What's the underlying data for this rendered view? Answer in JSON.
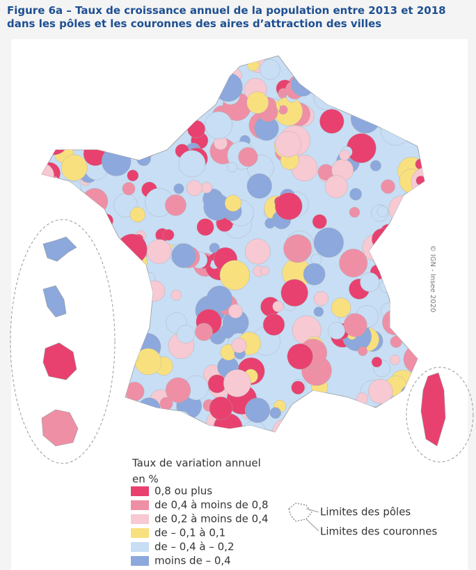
{
  "header": {
    "title": "Figure 6a – Taux de croissance annuel de la population entre 2013 et 2018 dans les pôles et les couronnes des aires d’attraction des villes"
  },
  "credit": "© IGN - Insee 2020",
  "legend": {
    "title": "Taux de variation annuel",
    "unit": "en %",
    "items": [
      {
        "label": "0,8 ou plus",
        "color": "#e8416f"
      },
      {
        "label": "de 0,4 à moins de 0,8",
        "color": "#ef8fa6"
      },
      {
        "label": "de 0,2 à moins de 0,4",
        "color": "#f7c9d3"
      },
      {
        "label": "de – 0,1 à 0,1",
        "color": "#f9e07f"
      },
      {
        "label": "de – 0,4 à – 0,2",
        "color": "#c7def5"
      },
      {
        "label": "moins de – 0,4",
        "color": "#8ca8dc"
      }
    ]
  },
  "boundaries": {
    "poles": "Limites des pôles",
    "couronnes": "Limites des couronnes"
  }
}
